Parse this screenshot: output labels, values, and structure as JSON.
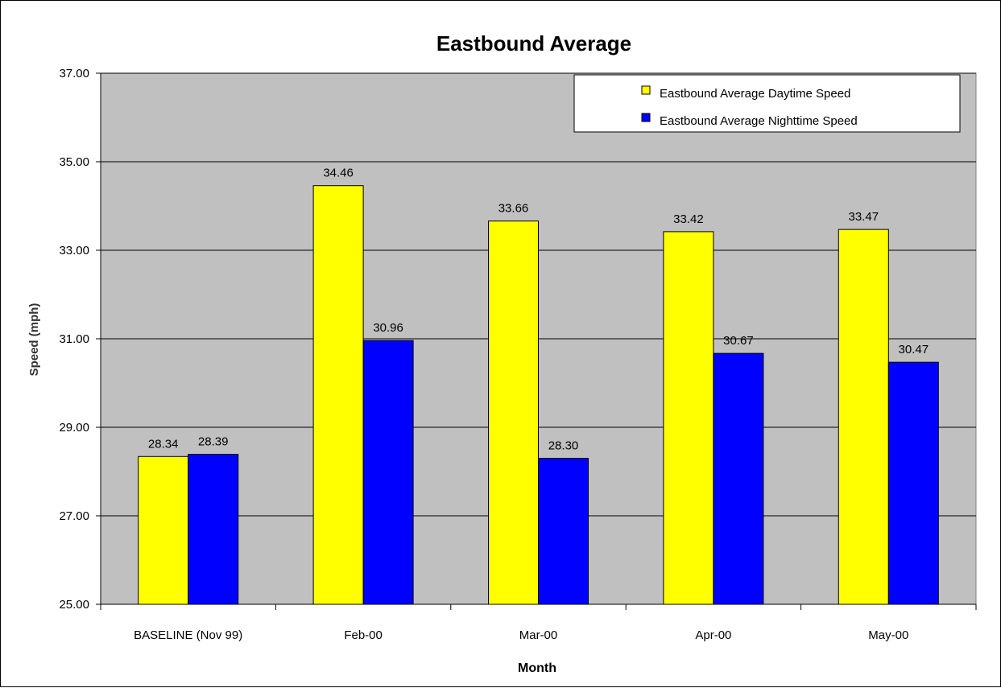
{
  "chart_data": {
    "type": "bar",
    "title": "Eastbound Average",
    "xlabel": "Month",
    "ylabel": "Speed (mph)",
    "categories": [
      "BASELINE (Nov 99)",
      "Feb-00",
      "Mar-00",
      "Apr-00",
      "May-00"
    ],
    "series": [
      {
        "name": "Eastbound Average Daytime Speed",
        "color": "#FFFF00",
        "values": [
          28.34,
          34.46,
          33.66,
          33.42,
          33.47
        ],
        "labels": [
          "28.34",
          "34.46",
          "33.66",
          "33.42",
          "33.47"
        ]
      },
      {
        "name": "Eastbound Average Nighttime Speed",
        "color": "#0000FF",
        "values": [
          28.39,
          30.96,
          28.3,
          30.67,
          30.47
        ],
        "labels": [
          "28.39",
          "30.96",
          "28.30",
          "30.67",
          "30.47"
        ]
      }
    ],
    "ylim": [
      25,
      37
    ],
    "yticks": [
      "25.00",
      "27.00",
      "29.00",
      "31.00",
      "33.00",
      "35.00",
      "37.00"
    ],
    "plot_background": "#C0C0C0",
    "grid": true,
    "legend_position": "top-right"
  }
}
